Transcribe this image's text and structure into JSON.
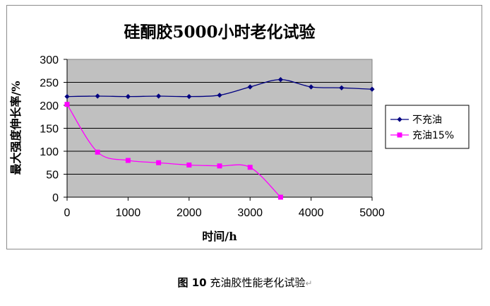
{
  "caption": {
    "label": "图 10",
    "text": "充油胶性能老化试验",
    "mark": "↵"
  },
  "colors": {
    "plot_bg": "#c0c0c0",
    "series_1": "#000080",
    "series_2": "#ff00ff"
  },
  "chart_data": {
    "type": "line",
    "title": "硅酮胶5000小时老化试验",
    "xlabel": "时间/h",
    "ylabel": "最大强度伸长率/%",
    "xlim": [
      0,
      5000
    ],
    "ylim": [
      0,
      300
    ],
    "xticks": [
      0,
      1000,
      2000,
      3000,
      4000,
      5000
    ],
    "yticks": [
      0,
      50,
      100,
      150,
      200,
      250,
      300
    ],
    "grid": {
      "horizontal": true,
      "vertical": false
    },
    "legend_position": "right",
    "series": [
      {
        "name": "不充油",
        "marker": "diamond",
        "x": [
          0,
          500,
          1000,
          1500,
          2000,
          2500,
          3000,
          3500,
          4000,
          4500,
          5000
        ],
        "y": [
          219,
          220,
          219,
          220,
          219,
          222,
          240,
          256,
          240,
          238,
          235
        ]
      },
      {
        "name": "充油15%",
        "marker": "square",
        "x": [
          0,
          500,
          1000,
          1500,
          2000,
          2500,
          3000,
          3500
        ],
        "y": [
          202,
          98,
          80,
          75,
          70,
          68,
          65,
          0
        ]
      }
    ]
  }
}
